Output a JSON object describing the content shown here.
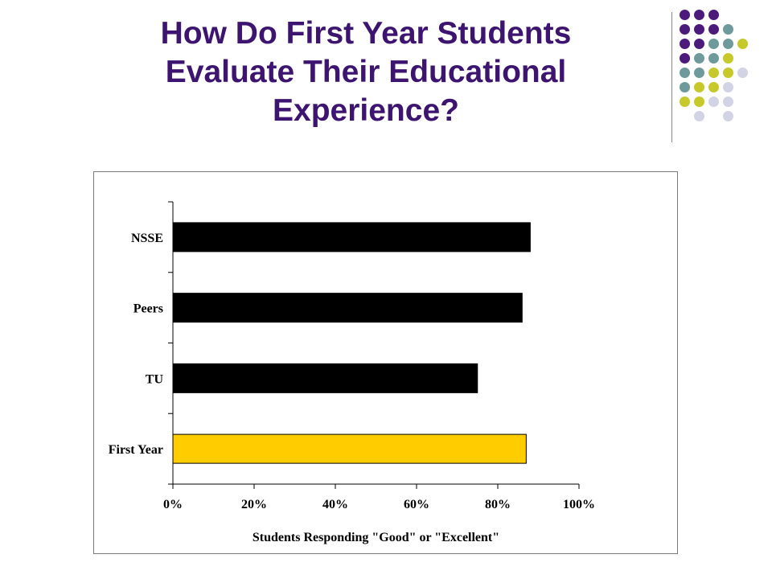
{
  "slide": {
    "title_line1": "How Do First Year Students",
    "title_line2": "Evaluate Their Educational",
    "title_line3": "Experience?"
  },
  "colors": {
    "title": "#3d1470",
    "bar_default": "#000000",
    "bar_highlight": "#ffcc00",
    "dot_purple": "#4b1a7a",
    "dot_teal": "#6f9a9b",
    "dot_yellow": "#c7c92a",
    "dot_lavender": "#d3d3e6"
  },
  "decor_dots": [
    [
      "purple",
      "purple",
      "purple",
      null,
      null
    ],
    [
      "purple",
      "purple",
      "purple",
      "teal",
      null
    ],
    [
      "purple",
      "purple",
      "teal",
      "teal",
      "yellow"
    ],
    [
      "purple",
      "teal",
      "teal",
      "yellow",
      null
    ],
    [
      "teal",
      "teal",
      "yellow",
      "yellow",
      "lavender"
    ],
    [
      "teal",
      "yellow",
      "yellow",
      "lavender",
      null
    ],
    [
      "yellow",
      "yellow",
      "lavender",
      "lavender",
      null
    ],
    [
      null,
      "lavender",
      null,
      "lavender",
      null
    ]
  ],
  "chart_data": {
    "type": "bar",
    "orientation": "horizontal",
    "categories": [
      "NSSE",
      "Peers",
      "TU",
      "First Year"
    ],
    "values": [
      0.88,
      0.86,
      0.75,
      0.87
    ],
    "highlight_category": "First Year",
    "xlim": [
      0,
      1
    ],
    "x_ticks": [
      "0%",
      "20%",
      "40%",
      "60%",
      "80%",
      "100%"
    ],
    "xlabel": "Students Responding \"Good\" or \"Excellent\"",
    "ylabel": "",
    "title": "",
    "grid": false,
    "legend": "none"
  }
}
